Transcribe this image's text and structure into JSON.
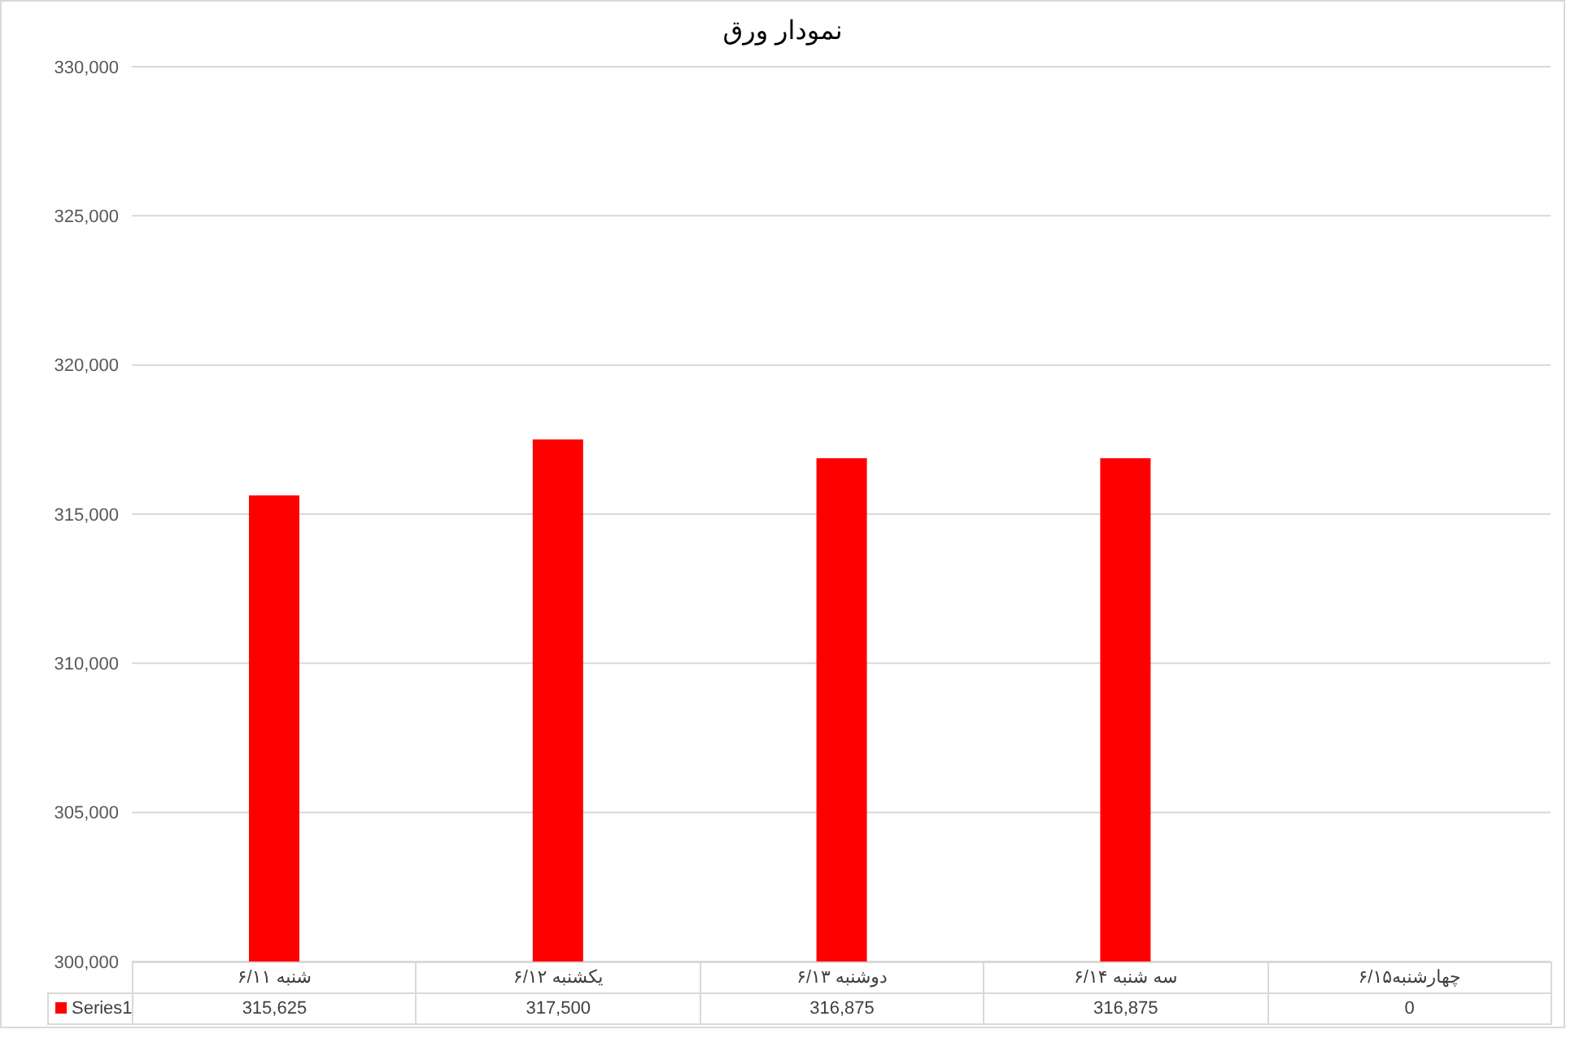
{
  "chart_data": {
    "type": "bar",
    "title": "نمودار ورق",
    "categories": [
      "شنبه ۶/۱۱",
      "یکشنبه ۶/۱۲",
      "دوشنبه ۶/۱۳",
      "سه شنبه ۶/۱۴",
      "چهارشنبه۶/۱۵"
    ],
    "series": [
      {
        "name": "Series1",
        "color": "#ff0000",
        "values": [
          315625,
          317500,
          316875,
          316875,
          null
        ],
        "value_labels": [
          "315,625",
          "317,500",
          "316,875",
          "316,875",
          "0"
        ]
      }
    ],
    "ylim": [
      300000,
      330000
    ],
    "yticks": [
      {
        "value": 300000,
        "label": "300,000"
      },
      {
        "value": 305000,
        "label": "305,000"
      },
      {
        "value": 310000,
        "label": "310,000"
      },
      {
        "value": 315000,
        "label": "315,000"
      },
      {
        "value": 320000,
        "label": "320,000"
      },
      {
        "value": 325000,
        "label": "325,000"
      },
      {
        "value": 330000,
        "label": "330,000"
      }
    ],
    "grid": "y",
    "legend": "bottom"
  }
}
